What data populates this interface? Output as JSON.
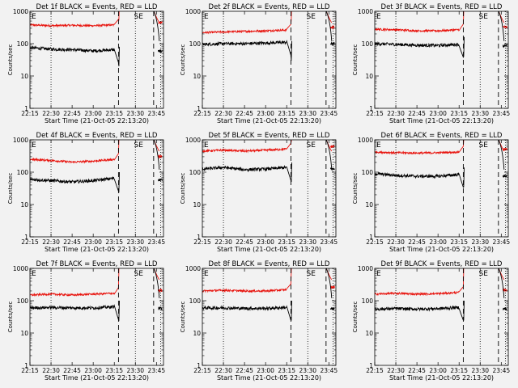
{
  "colors": {
    "events": "#000000",
    "lld": "#e8140e",
    "background": "#f2f2f2",
    "axes": "#000000"
  },
  "chart_data": [
    {
      "type": "line",
      "title": "Det 1f BLACK = Events, RED = LLD",
      "xlabel": "Start Time (21-Oct-05 22:13:20)",
      "ylabel": "Counts/sec",
      "yscale": "log",
      "ylim": [
        1,
        1000
      ],
      "xlim": [
        "22:15",
        "23:50"
      ],
      "x_ticks": [
        "22:15",
        "22:30",
        "22:45",
        "23:00",
        "23:15",
        "23:30",
        "23:45"
      ],
      "y_ticks": [
        "1",
        "10",
        "100",
        "1000"
      ],
      "annotations": [
        "E",
        "SE"
      ],
      "dotted_lines": [
        "22:30",
        "23:30",
        "23:48"
      ],
      "dashed_lines": [
        "23:18",
        "23:43"
      ],
      "series": [
        {
          "color": "lld",
          "values": [
            [
              22.25,
              380
            ],
            [
              22.5,
              360
            ],
            [
              22.75,
              370
            ],
            [
              23.0,
              360
            ],
            [
              23.25,
              380
            ],
            [
              23.3,
              550
            ]
          ]
        },
        {
          "color": "events",
          "values": [
            [
              22.25,
              75
            ],
            [
              22.5,
              68
            ],
            [
              22.75,
              65
            ],
            [
              23.0,
              60
            ],
            [
              23.25,
              65
            ],
            [
              23.3,
              20
            ]
          ]
        }
      ]
    },
    {
      "type": "line",
      "title": "Det 2f BLACK = Events, RED = LLD",
      "xlabel": "Start Time (21-Oct-05 22:13:20)",
      "ylabel": "Counts/sec",
      "yscale": "log",
      "ylim": [
        1,
        1000
      ],
      "xlim": [
        "22:15",
        "23:50"
      ],
      "x_ticks": [
        "22:15",
        "22:30",
        "22:45",
        "23:00",
        "23:15",
        "23:30",
        "23:45"
      ],
      "y_ticks": [
        "1",
        "10",
        "100",
        "1000"
      ],
      "annotations": [
        "E",
        "SE"
      ],
      "dotted_lines": [
        "22:30",
        "23:30",
        "23:48"
      ],
      "dashed_lines": [
        "23:18",
        "23:43"
      ],
      "series": [
        {
          "color": "lld",
          "values": [
            [
              22.25,
              220
            ],
            [
              22.5,
              230
            ],
            [
              22.75,
              240
            ],
            [
              23.0,
              250
            ],
            [
              23.25,
              265
            ],
            [
              23.3,
              600
            ]
          ]
        },
        {
          "color": "events",
          "values": [
            [
              22.25,
              95
            ],
            [
              22.5,
              100
            ],
            [
              22.75,
              100
            ],
            [
              23.0,
              105
            ],
            [
              23.25,
              110
            ],
            [
              23.3,
              30
            ]
          ]
        }
      ]
    },
    {
      "type": "line",
      "title": "Det 3f BLACK = Events, RED = LLD",
      "xlabel": "Start Time (21-Oct-05 22:13:20)",
      "ylabel": "Counts/sec",
      "yscale": "log",
      "ylim": [
        1,
        1000
      ],
      "xlim": [
        "22:15",
        "23:50"
      ],
      "x_ticks": [
        "22:15",
        "22:30",
        "22:45",
        "23:00",
        "23:15",
        "23:30",
        "23:45"
      ],
      "y_ticks": [
        "1",
        "10",
        "100",
        "1000"
      ],
      "annotations": [
        "E",
        "SE"
      ],
      "dotted_lines": [
        "22:30",
        "23:30",
        "23:48"
      ],
      "dashed_lines": [
        "23:18",
        "23:43"
      ],
      "series": [
        {
          "color": "lld",
          "values": [
            [
              22.25,
              280
            ],
            [
              22.5,
              270
            ],
            [
              22.75,
              250
            ],
            [
              23.0,
              250
            ],
            [
              23.25,
              270
            ],
            [
              23.3,
              900
            ]
          ]
        },
        {
          "color": "events",
          "values": [
            [
              22.25,
              100
            ],
            [
              22.5,
              95
            ],
            [
              22.75,
              90
            ],
            [
              23.0,
              88
            ],
            [
              23.25,
              95
            ],
            [
              23.3,
              40
            ]
          ]
        }
      ]
    },
    {
      "type": "line",
      "title": "Det 4f BLACK = Events, RED = LLD",
      "xlabel": "Start Time (21-Oct-05 22:13:20)",
      "ylabel": "Counts/sec",
      "yscale": "log",
      "ylim": [
        1,
        1000
      ],
      "xlim": [
        "22:15",
        "23:50"
      ],
      "x_ticks": [
        "22:15",
        "22:30",
        "22:45",
        "23:00",
        "23:15",
        "23:30",
        "23:45"
      ],
      "y_ticks": [
        "1",
        "10",
        "100",
        "1000"
      ],
      "annotations": [
        "E",
        "SE"
      ],
      "dotted_lines": [
        "22:30",
        "23:30",
        "23:48"
      ],
      "dashed_lines": [
        "23:18",
        "23:43"
      ],
      "series": [
        {
          "color": "lld",
          "values": [
            [
              22.25,
              250
            ],
            [
              22.5,
              230
            ],
            [
              22.75,
              205
            ],
            [
              23.0,
              220
            ],
            [
              23.25,
              250
            ],
            [
              23.3,
              950
            ]
          ]
        },
        {
          "color": "events",
          "values": [
            [
              22.25,
              60
            ],
            [
              22.5,
              55
            ],
            [
              22.75,
              50
            ],
            [
              23.0,
              55
            ],
            [
              23.25,
              65
            ],
            [
              23.3,
              25
            ]
          ]
        }
      ]
    },
    {
      "type": "line",
      "title": "Det 5f BLACK = Events, RED = LLD",
      "xlabel": "Start Time (21-Oct-05 22:13:20)",
      "ylabel": "Counts/sec",
      "yscale": "log",
      "ylim": [
        1,
        1000
      ],
      "xlim": [
        "22:15",
        "23:50"
      ],
      "x_ticks": [
        "22:15",
        "22:30",
        "22:45",
        "23:00",
        "23:15",
        "23:30",
        "23:45"
      ],
      "y_ticks": [
        "1",
        "10",
        "100",
        "1000"
      ],
      "annotations": [
        "E",
        "SE"
      ],
      "dotted_lines": [
        "22:30",
        "23:30",
        "23:48"
      ],
      "dashed_lines": [
        "23:18",
        "23:43"
      ],
      "series": [
        {
          "color": "lld",
          "values": [
            [
              22.25,
              450
            ],
            [
              22.5,
              480
            ],
            [
              22.75,
              450
            ],
            [
              23.0,
              480
            ],
            [
              23.25,
              520
            ],
            [
              23.3,
              900
            ]
          ]
        },
        {
          "color": "events",
          "values": [
            [
              22.25,
              125
            ],
            [
              22.5,
              140
            ],
            [
              22.75,
              120
            ],
            [
              23.0,
              125
            ],
            [
              23.25,
              140
            ],
            [
              23.3,
              50
            ]
          ]
        }
      ]
    },
    {
      "type": "line",
      "title": "Det 6f BLACK = Events, RED = LLD",
      "xlabel": "Start Time (21-Oct-05 22:13:20)",
      "ylabel": "Counts/sec",
      "yscale": "log",
      "ylim": [
        1,
        1000
      ],
      "xlim": [
        "22:15",
        "23:50"
      ],
      "x_ticks": [
        "22:15",
        "22:30",
        "22:45",
        "23:00",
        "23:15",
        "23:30",
        "23:45"
      ],
      "y_ticks": [
        "1",
        "10",
        "100",
        "1000"
      ],
      "annotations": [
        "E",
        "SE"
      ],
      "dotted_lines": [
        "22:30",
        "23:30",
        "23:48"
      ],
      "dashed_lines": [
        "23:18",
        "23:43"
      ],
      "series": [
        {
          "color": "lld",
          "values": [
            [
              22.25,
              420
            ],
            [
              22.5,
              400
            ],
            [
              22.75,
              390
            ],
            [
              23.0,
              400
            ],
            [
              23.25,
              420
            ],
            [
              23.3,
              950
            ]
          ]
        },
        {
          "color": "events",
          "values": [
            [
              22.25,
              90
            ],
            [
              22.5,
              80
            ],
            [
              22.75,
              75
            ],
            [
              23.0,
              75
            ],
            [
              23.25,
              85
            ],
            [
              23.3,
              35
            ]
          ]
        }
      ]
    },
    {
      "type": "line",
      "title": "Det 7f BLACK = Events, RED = LLD",
      "xlabel": "Start Time (21-Oct-05 22:13:20)",
      "ylabel": "Counts/sec",
      "yscale": "log",
      "ylim": [
        1,
        1000
      ],
      "xlim": [
        "22:15",
        "23:50"
      ],
      "x_ticks": [
        "22:15",
        "22:30",
        "22:45",
        "23:00",
        "23:15",
        "23:30",
        "23:45"
      ],
      "y_ticks": [
        "1",
        "10",
        "100",
        "1000"
      ],
      "annotations": [
        "E",
        "SE"
      ],
      "dotted_lines": [
        "22:30",
        "23:30",
        "23:48"
      ],
      "dashed_lines": [
        "23:18",
        "23:43"
      ],
      "series": [
        {
          "color": "lld",
          "values": [
            [
              22.25,
              150
            ],
            [
              22.5,
              160
            ],
            [
              22.75,
              150
            ],
            [
              23.0,
              160
            ],
            [
              23.25,
              170
            ],
            [
              23.3,
              900
            ]
          ]
        },
        {
          "color": "events",
          "values": [
            [
              22.25,
              60
            ],
            [
              22.5,
              62
            ],
            [
              22.75,
              60
            ],
            [
              23.0,
              60
            ],
            [
              23.25,
              65
            ],
            [
              23.3,
              25
            ]
          ]
        }
      ]
    },
    {
      "type": "line",
      "title": "Det 8f BLACK = Events, RED = LLD",
      "xlabel": "Start Time (21-Oct-05 22:13:20)",
      "ylabel": "Counts/sec",
      "yscale": "log",
      "ylim": [
        1,
        1000
      ],
      "xlim": [
        "22:15",
        "23:50"
      ],
      "x_ticks": [
        "22:15",
        "22:30",
        "22:45",
        "23:00",
        "23:15",
        "23:30",
        "23:45"
      ],
      "y_ticks": [
        "1",
        "10",
        "100",
        "1000"
      ],
      "annotations": [
        "E",
        "SE"
      ],
      "dotted_lines": [
        "22:30",
        "23:30",
        "23:48"
      ],
      "dashed_lines": [
        "23:18",
        "23:43"
      ],
      "series": [
        {
          "color": "lld",
          "values": [
            [
              22.25,
              200
            ],
            [
              22.5,
              210
            ],
            [
              22.75,
              200
            ],
            [
              23.0,
              200
            ],
            [
              23.25,
              220
            ],
            [
              23.3,
              850
            ]
          ]
        },
        {
          "color": "events",
          "values": [
            [
              22.25,
              60
            ],
            [
              22.5,
              60
            ],
            [
              22.75,
              58
            ],
            [
              23.0,
              58
            ],
            [
              23.25,
              62
            ],
            [
              23.3,
              25
            ]
          ]
        }
      ]
    },
    {
      "type": "line",
      "title": "Det 9f BLACK = Events, RED = LLD",
      "xlabel": "Start Time (21-Oct-05 22:13:20)",
      "ylabel": "Counts/sec",
      "yscale": "log",
      "ylim": [
        1,
        1000
      ],
      "xlim": [
        "22:15",
        "23:50"
      ],
      "x_ticks": [
        "22:15",
        "22:30",
        "22:45",
        "23:00",
        "23:15",
        "23:30",
        "23:45"
      ],
      "y_ticks": [
        "1",
        "10",
        "100",
        "1000"
      ],
      "annotations": [
        "E",
        "SE"
      ],
      "dotted_lines": [
        "22:30",
        "23:30",
        "23:48"
      ],
      "dashed_lines": [
        "23:18",
        "23:43"
      ],
      "series": [
        {
          "color": "lld",
          "values": [
            [
              22.25,
              160
            ],
            [
              22.5,
              170
            ],
            [
              22.75,
              160
            ],
            [
              23.0,
              165
            ],
            [
              23.25,
              180
            ],
            [
              23.3,
              950
            ]
          ]
        },
        {
          "color": "events",
          "values": [
            [
              22.25,
              55
            ],
            [
              22.5,
              57
            ],
            [
              22.75,
              55
            ],
            [
              23.0,
              57
            ],
            [
              23.25,
              62
            ],
            [
              23.3,
              25
            ]
          ]
        }
      ]
    }
  ]
}
